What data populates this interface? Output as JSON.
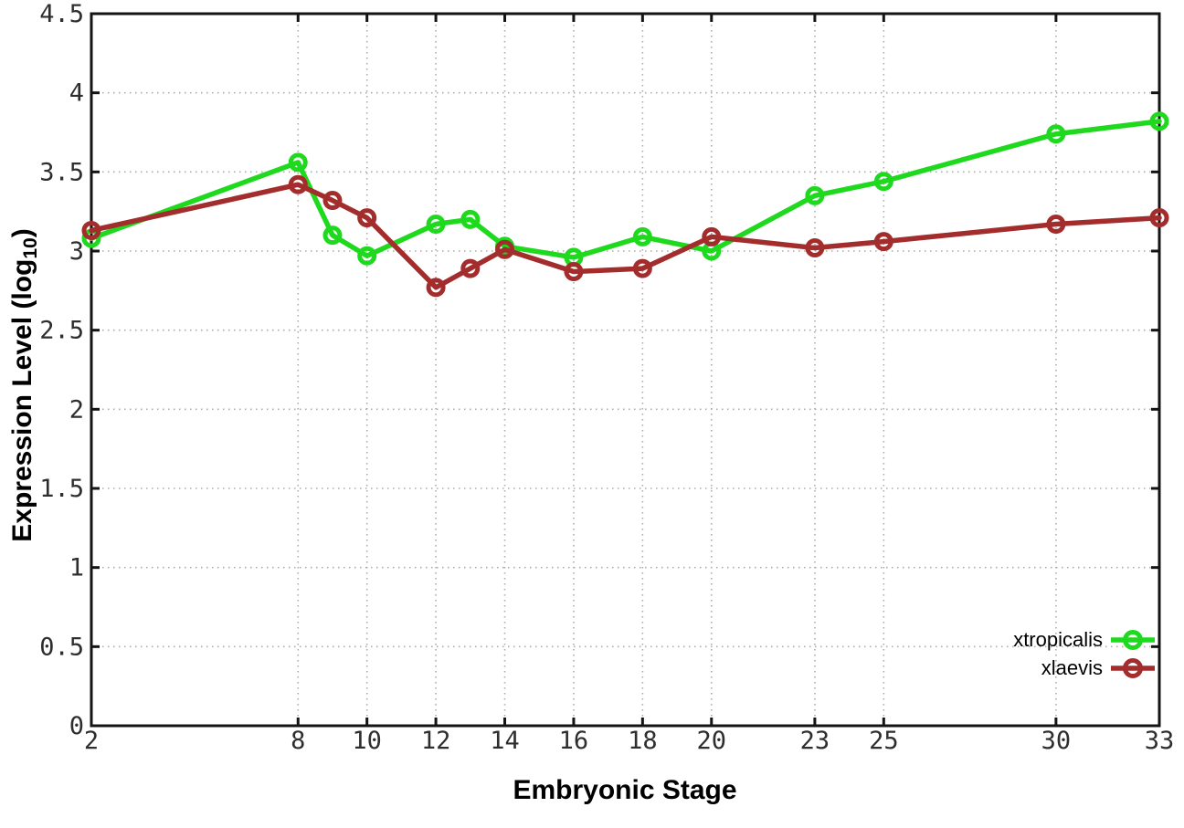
{
  "figure": {
    "background": "#ffffff",
    "xlabel": "Embryonic Stage",
    "ylabel_parts": {
      "pre": "Expression Level (log",
      "sub": "10",
      "post": ")"
    }
  },
  "chart_data": {
    "type": "line",
    "title": "",
    "xlabel": "Embryonic Stage",
    "ylabel": "Expression Level (log10)",
    "x": [
      2,
      8,
      9,
      10,
      12,
      13,
      14,
      16,
      18,
      20,
      23,
      25,
      30,
      33
    ],
    "series": [
      {
        "name": "xtropicalis",
        "color": "#1fd91f",
        "values": [
          3.08,
          3.56,
          3.1,
          2.97,
          3.17,
          3.2,
          3.03,
          2.96,
          3.09,
          3.0,
          3.35,
          3.44,
          3.74,
          3.82
        ]
      },
      {
        "name": "xlaevis",
        "color": "#a32c2c",
        "values": [
          3.13,
          3.42,
          3.32,
          3.21,
          2.77,
          2.89,
          3.01,
          2.87,
          2.89,
          3.09,
          3.02,
          3.06,
          3.17,
          3.21
        ]
      }
    ],
    "xlim": [
      2,
      33
    ],
    "ylim": [
      0,
      4.5
    ],
    "xticks": [
      2,
      8,
      10,
      12,
      14,
      16,
      18,
      20,
      23,
      25,
      30,
      33
    ],
    "yticks": [
      0,
      0.5,
      1,
      1.5,
      2,
      2.5,
      3,
      3.5,
      4,
      4.5
    ],
    "grid": true,
    "grid_style": "dotted",
    "legend_position": "inside-bottom-right",
    "marker": "open-circle",
    "border_color": "#141414",
    "grid_color": "#ababab"
  }
}
